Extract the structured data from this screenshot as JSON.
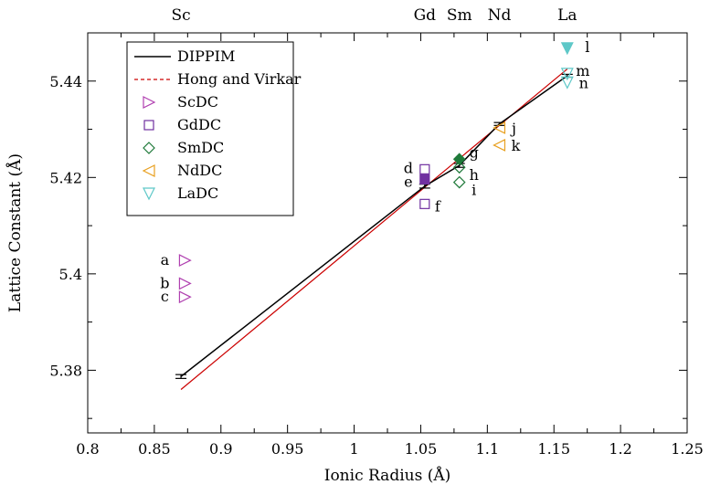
{
  "chart_data": {
    "type": "scatter",
    "xlabel": "Ionic Radius (Å)",
    "ylabel": "Lattice Constant (Å)",
    "xlim": [
      0.8,
      1.25
    ],
    "ylim": [
      5.367,
      5.45
    ],
    "xticks": [
      0.8,
      0.85,
      0.9,
      0.95,
      1.0,
      1.05,
      1.1,
      1.15,
      1.2,
      1.25
    ],
    "xtick_labels": [
      "0.8",
      "0.85",
      "0.9",
      "0.95",
      "1",
      "1.05",
      "1.1",
      "1.15",
      "1.2",
      "1.25"
    ],
    "yticks": [
      5.38,
      5.4,
      5.42,
      5.44
    ],
    "ytick_labels": [
      "5.38",
      "5.4",
      "5.42",
      "5.44"
    ],
    "top_labels": [
      {
        "text": "Sc",
        "x": 0.87
      },
      {
        "text": "Gd",
        "x": 1.053
      },
      {
        "text": "Sm",
        "x": 1.079
      },
      {
        "text": "Nd",
        "x": 1.109
      },
      {
        "text": "La",
        "x": 1.16
      }
    ],
    "legend_position": "top-left",
    "grid": false,
    "series": [
      {
        "name": "DIPPIM",
        "style": "solid-line",
        "color": "#000000",
        "x": [
          0.87,
          1.053,
          1.079,
          1.109,
          1.16
        ],
        "y": [
          5.3787,
          5.4182,
          5.4225,
          5.4311,
          5.4411
        ],
        "err": [
          0.0004,
          0.0004,
          0.0004,
          0.0003,
          0.0003
        ]
      },
      {
        "name": "Hong and Virkar",
        "style": "line",
        "color": "#cc0000",
        "x": [
          0.87,
          1.16
        ],
        "y": [
          5.376,
          5.4425
        ]
      },
      {
        "name": "ScDC",
        "marker": "triangle-right",
        "color": "#b040b0",
        "points": [
          {
            "x": 0.873,
            "y": 5.4028,
            "label": "a"
          },
          {
            "x": 0.873,
            "y": 5.398,
            "label": "b"
          },
          {
            "x": 0.873,
            "y": 5.3952,
            "label": "c"
          }
        ]
      },
      {
        "name": "GdDC",
        "marker": "square",
        "color": "#7030a0",
        "points": [
          {
            "x": 1.053,
            "y": 5.4217,
            "label": "d",
            "filled": false
          },
          {
            "x": 1.053,
            "y": 5.4196,
            "label": "e",
            "filled": true
          },
          {
            "x": 1.053,
            "y": 5.4145,
            "label": "f",
            "filled": false
          }
        ]
      },
      {
        "name": "SmDC",
        "marker": "diamond",
        "color": "#1f7a3a",
        "points": [
          {
            "x": 1.079,
            "y": 5.4238,
            "label": "g",
            "filled": true
          },
          {
            "x": 1.079,
            "y": 5.4221,
            "label": "h",
            "filled": false
          },
          {
            "x": 1.079,
            "y": 5.419,
            "label": "i",
            "filled": false
          }
        ]
      },
      {
        "name": "NdDC",
        "marker": "triangle-left",
        "color": "#e8a020",
        "points": [
          {
            "x": 1.109,
            "y": 5.4303,
            "label": "j",
            "filled": false
          },
          {
            "x": 1.109,
            "y": 5.4267,
            "label": "k",
            "filled": false
          }
        ]
      },
      {
        "name": "LaDC",
        "marker": "triangle-down",
        "color": "#5ec8c8",
        "points": [
          {
            "x": 1.16,
            "y": 5.4468,
            "label": "l",
            "filled": true
          },
          {
            "x": 1.16,
            "y": 5.4415,
            "label": "m",
            "filled": false
          },
          {
            "x": 1.16,
            "y": 5.4397,
            "label": "n",
            "filled": false
          }
        ]
      }
    ]
  }
}
